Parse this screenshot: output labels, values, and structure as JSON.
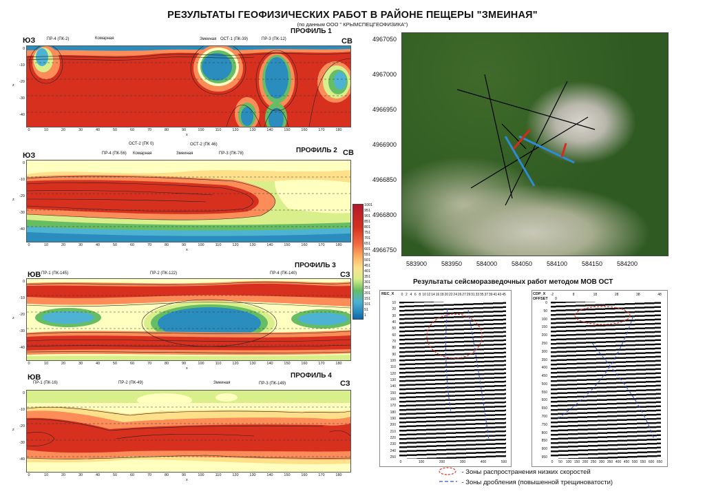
{
  "title": "РЕЗУЛЬТАТЫ ГЕОФИЗИЧЕСКИХ РАБОТ В РАЙОНЕ ПЕЩЕРЫ \"ЗМЕИНАЯ\"",
  "subtitle": "(по данным ООО \" КРЫМСПЕЦГЕОФИЗИКА\")",
  "colors": {
    "deep_red": "#d7301f",
    "orange": "#fc8d59",
    "yellow": "#ffffbf",
    "light_green": "#d9ef8b",
    "green": "#66bd63",
    "cyan": "#4eb3d3",
    "blue": "#2b8cbe",
    "dark_blue": "#0868ac"
  },
  "profiles": [
    {
      "title": "ПРОФИЛЬ 1",
      "left_dir": "ЮЗ",
      "right_dir": "СВ",
      "x_label": "x",
      "z_label": "z",
      "markers": [
        "ПР-4 (ПК-2)",
        "Комарная",
        "Змеиная",
        "ОСТ-1 (ПК-39)",
        "ПР-3 (ПК-12)"
      ]
    },
    {
      "title": "ПРОФИЛЬ 2",
      "left_dir": "ЮЗ",
      "right_dir": "СВ",
      "x_label": "x",
      "z_label": "z",
      "markers": [
        "ПР-4 (ПК-56)",
        "ОСТ-2 (ПК 0)",
        "Комарная",
        "Змеиная",
        "ОСТ-2 (ПК 46)",
        "ПР-3 (ПК-78)"
      ]
    },
    {
      "title": "ПРОФИЛЬ 3",
      "left_dir": "ЮВ",
      "right_dir": "СЗ",
      "x_label": "x",
      "z_label": "z",
      "markers": [
        "ПР-1 (ПК-145)",
        "ПР-2 (ПК-122)",
        "ПР-4 (ПК-140)"
      ]
    },
    {
      "title": "ПРОФИЛЬ 4",
      "left_dir": "ЮВ",
      "right_dir": "СЗ",
      "x_label": "x",
      "z_label": "z",
      "markers": [
        "ПР-1 (ПК-16)",
        "ПР-2 (ПК-49)",
        "Змеиная",
        "ПР-3 (ПК-149)"
      ]
    }
  ],
  "x_ticks": [
    "0",
    "10",
    "20",
    "30",
    "40",
    "50",
    "60",
    "70",
    "80",
    "90",
    "100",
    "110",
    "120",
    "130",
    "140",
    "150",
    "160",
    "170",
    "180"
  ],
  "z_ticks": [
    "0",
    "-10",
    "-20",
    "-30",
    "-40"
  ],
  "colorbar": [
    "1001",
    "951",
    "901",
    "851",
    "801",
    "751",
    "701",
    "651",
    "601",
    "551",
    "501",
    "451",
    "401",
    "351",
    "301",
    "251",
    "201",
    "151",
    "101",
    "51",
    "1"
  ],
  "map": {
    "y_labels": [
      "4967050",
      "4967000",
      "4966950",
      "4966900",
      "4966850",
      "4966800",
      "4966750"
    ],
    "x_labels": [
      "583900",
      "583950",
      "584000",
      "584050",
      "584100",
      "584150",
      "584200"
    ]
  },
  "seismic": {
    "title": "Результаты сейсморазведочных работ методом МОВ ОСТ",
    "left_header": "REC_X",
    "left_top_ticks": [
      "0",
      "2",
      "4",
      "6",
      "8",
      "10",
      "12",
      "14",
      "16",
      "18",
      "20",
      "22",
      "24",
      "26",
      "27",
      "29",
      "31",
      "33",
      "35",
      "37",
      "39",
      "41",
      "43",
      "45"
    ],
    "left_y_ticks": [
      "10",
      "20",
      "30",
      "40",
      "50",
      "60",
      "70",
      "80",
      "90",
      "100",
      "110",
      "120",
      "130",
      "140",
      "150",
      "160",
      "170",
      "180",
      "190",
      "200",
      "210",
      "220",
      "230",
      "240",
      "250"
    ],
    "left_bottom_ticks": [
      "0",
      "100",
      "200",
      "300",
      "400",
      "500"
    ],
    "right_header": "CDP_X",
    "right_header2": "OFFSET",
    "right_offset_value": "0",
    "right_top_ticks": [
      "-2",
      "8",
      "18",
      "28",
      "38",
      "48"
    ],
    "right_y_ticks": [
      "0",
      "50",
      "100",
      "150",
      "200",
      "250",
      "300",
      "350",
      "400",
      "450",
      "500",
      "550",
      "600",
      "650",
      "700",
      "750",
      "800",
      "850",
      "900",
      "950"
    ],
    "right_bottom_ticks": [
      "0",
      "50",
      "100",
      "150",
      "200",
      "250",
      "300",
      "350",
      "400",
      "450",
      "500",
      "550",
      "600",
      "650"
    ]
  },
  "legend": [
    {
      "symbol": "red-ellipse",
      "text": "- Зоны распространения низких скоростей"
    },
    {
      "symbol": "blue-dash",
      "text": "- Зоны дробления (повышенной трещиноватости)"
    }
  ]
}
